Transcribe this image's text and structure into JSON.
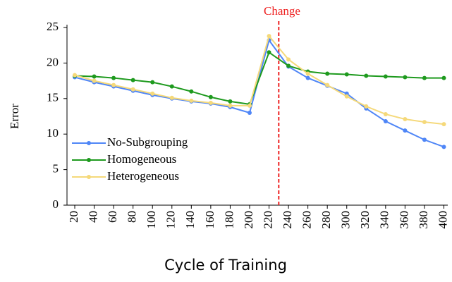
{
  "chart_data": {
    "type": "line",
    "title": "Change",
    "y_label": "Error",
    "x_label": "Cycle of Training",
    "x": [
      20,
      40,
      60,
      80,
      100,
      120,
      140,
      160,
      180,
      200,
      220,
      240,
      260,
      280,
      300,
      320,
      340,
      360,
      380,
      400
    ],
    "series": [
      {
        "name": "No-Subgrouping",
        "color": "#4f86f7",
        "values": [
          18.0,
          17.3,
          16.7,
          16.1,
          15.5,
          15.0,
          14.6,
          14.3,
          13.8,
          13.0,
          23.2,
          19.5,
          17.9,
          16.8,
          15.7,
          13.6,
          11.8,
          10.5,
          9.2,
          8.2
        ]
      },
      {
        "name": "Homogeneous",
        "color": "#1e9a1e",
        "values": [
          18.2,
          18.1,
          17.9,
          17.6,
          17.3,
          16.7,
          16.0,
          15.2,
          14.6,
          14.2,
          21.5,
          19.6,
          18.8,
          18.5,
          18.4,
          18.2,
          18.1,
          18.0,
          17.9,
          17.9
        ]
      },
      {
        "name": "Heterogeneous",
        "color": "#f5d97a",
        "values": [
          18.3,
          17.5,
          16.9,
          16.3,
          15.7,
          15.1,
          14.7,
          14.4,
          14.0,
          14.0,
          23.8,
          20.5,
          18.5,
          16.9,
          15.3,
          13.9,
          12.8,
          12.1,
          11.7,
          11.4
        ]
      }
    ],
    "change_x": 230,
    "change_color": "#ee2222",
    "xlim": [
      12,
      404
    ],
    "xticks": [
      20,
      40,
      60,
      80,
      100,
      120,
      140,
      160,
      180,
      200,
      220,
      240,
      260,
      280,
      300,
      320,
      340,
      360,
      380,
      400
    ],
    "ylim": [
      0,
      25
    ],
    "yticks": [
      0,
      5,
      10,
      15,
      20,
      25
    ],
    "grid": false,
    "legend": "lower left"
  }
}
